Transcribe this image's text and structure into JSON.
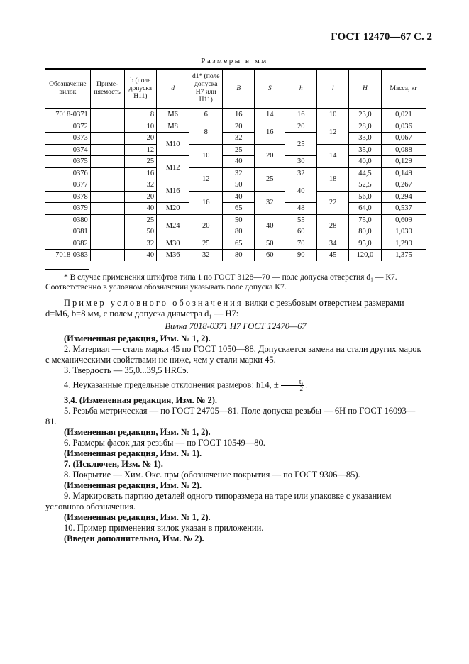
{
  "header": "ГОСТ 12470—67 С. 2",
  "units": "Размеры в мм",
  "table": {
    "columns": [
      "Обозначение вилок",
      "Приме-няемость",
      "b (поле допуска H11)",
      "d",
      "d1* (поле допуска H7 или H11)",
      "B",
      "S",
      "h",
      "l",
      "H",
      "Масса, кг"
    ],
    "rows": [
      [
        "7018-0371",
        "",
        "8",
        "M6",
        "6",
        "16",
        "14",
        "16",
        "10",
        "23,0",
        "0,021"
      ],
      [
        "0372",
        "",
        "10",
        "M8",
        "8",
        "20",
        "16",
        "20",
        "12",
        "28,0",
        "0,036"
      ],
      [
        "0373",
        "",
        "20",
        "M10",
        null,
        "32",
        null,
        "25",
        null,
        "33,0",
        "0,067"
      ],
      [
        "0374",
        "",
        "12",
        null,
        "10",
        "25",
        "20",
        null,
        "14",
        "35,0",
        "0,088"
      ],
      [
        "0375",
        "",
        "25",
        "M12",
        null,
        "40",
        null,
        "30",
        null,
        "40,0",
        "0,129"
      ],
      [
        "0376",
        "",
        "16",
        null,
        "12",
        "32",
        "25",
        "32",
        "18",
        "44,5",
        "0,149"
      ],
      [
        "0377",
        "",
        "32",
        "M16",
        null,
        "50",
        null,
        "40",
        null,
        "52,5",
        "0,267"
      ],
      [
        "0378",
        "",
        "20",
        null,
        "16",
        "40",
        "32",
        null,
        "22",
        "56,0",
        "0,294"
      ],
      [
        "0379",
        "",
        "40",
        "M20",
        null,
        "65",
        null,
        "48",
        null,
        "64,0",
        "0,537"
      ],
      [
        "0380",
        "",
        "25",
        "M24",
        "20",
        "50",
        "40",
        "55",
        "28",
        "75,0",
        "0,609"
      ],
      [
        "0381",
        "",
        "50",
        null,
        null,
        "80",
        null,
        "60",
        null,
        "80,0",
        "1,030"
      ],
      [
        "0382",
        "",
        "32",
        "M30",
        "25",
        "65",
        "50",
        "70",
        "34",
        "95,0",
        "1,290"
      ],
      [
        "7018-0383",
        "",
        "40",
        "M36",
        "32",
        "80",
        "60",
        "90",
        "45",
        "120,0",
        "1,375"
      ]
    ]
  },
  "footnote": "* В случае применения штифтов типа 1 по ГОСТ 3128—70 — поле допуска отверстия d₁ — К7. Соответственно в условном обозначении указывать поле допуска К7.",
  "example": {
    "lead": "Пример условного обозначения",
    "rest": " вилки с резьбовым отверстием размерами d=M6, b=8 мм, с полем допуска диаметра d₁ — H7:",
    "designation": "Вилка 7018-0371 H7 ГОСТ 12470—67"
  },
  "paras": [
    {
      "text": "(Измененная редакция, Изм. № 1, 2).",
      "bold": true
    },
    {
      "text": "2. Материал — сталь марки 45 по ГОСТ 1050—88. Допускается замена на стали других марок с механическими свойствами не ниже, чем у стали марки 45.",
      "bold": false
    },
    {
      "text": "3. Твердость — 35,0...39,5 HRCэ.",
      "bold": false
    },
    {
      "text": "4. Неуказанные предельные отклонения размеров: h14, ±",
      "bold": false,
      "frac_num": "t₂",
      "frac_den": "2"
    },
    {
      "text": "3,4. (Измененная редакция, Изм. № 2).",
      "bold": true
    },
    {
      "text": "5. Резьба метрическая — по ГОСТ 24705—81. Поле допуска резьбы — 6H по ГОСТ 16093—81.",
      "bold": false
    },
    {
      "text": "(Измененная редакция, Изм. № 1, 2).",
      "bold": true
    },
    {
      "text": "6. Размеры фасок для резьбы — по ГОСТ 10549—80.",
      "bold": false
    },
    {
      "text": "(Измененная редакция, Изм. № 1).",
      "bold": true
    },
    {
      "text": "7. (Исключен, Изм. № 1).",
      "bold": true
    },
    {
      "text": "8. Покрытие — Хим. Окс. прм (обозначение покрытия — по ГОСТ 9306—85).",
      "bold": false
    },
    {
      "text": "(Измененная редакция, Изм. № 2).",
      "bold": true
    },
    {
      "text": "9. Маркировать партию деталей одного типоразмера на таре или упаковке с указанием условного обозначения.",
      "bold": false
    },
    {
      "text": "(Измененная редакция, Изм. № 1, 2).",
      "bold": true
    },
    {
      "text": "10. Пример применения вилок указан в приложении.",
      "bold": false
    },
    {
      "text": "(Введен дополнительно, Изм. № 2).",
      "bold": true
    }
  ]
}
